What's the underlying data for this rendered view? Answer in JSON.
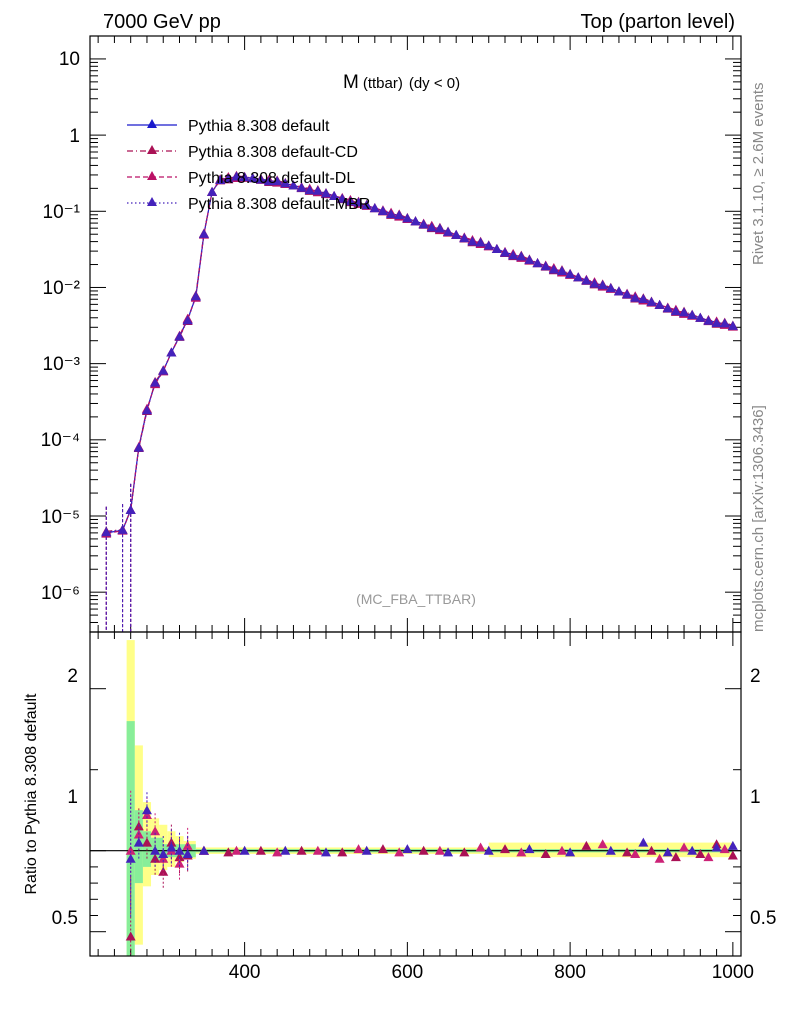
{
  "header": {
    "left": "7000 GeV pp",
    "right": "Top (parton level)"
  },
  "side": {
    "rivet": "Rivet 3.1.10, ≥ 2.6M events",
    "mcplots": "mcplots.cern.ch [arXiv:1306.3436]"
  },
  "chart_data": [
    {
      "type": "line",
      "title": "M",
      "title_sub": "(ttbar)",
      "title_tail": "(dy < 0)",
      "watermark": "(MC_FBA_TTBAR)",
      "yscale": "log",
      "xlim": [
        210,
        1010
      ],
      "ylim": [
        3e-07,
        20
      ],
      "y_tick_labels": [
        "10",
        "1",
        "10⁻¹",
        "10⁻²",
        "10⁻³",
        "10⁻⁴",
        "10⁻⁵",
        "10⁻⁶"
      ],
      "legend_position": "top-left",
      "series": [
        {
          "name": "Pythia 8.308 default",
          "color": "#1a1acc",
          "dash": "solid",
          "offset": 0.0
        },
        {
          "name": "Pythia 8.308 default-CD",
          "color": "#aa1155",
          "dash": "dashdot",
          "offset": -0.02
        },
        {
          "name": "Pythia 8.308 default-DL",
          "color": "#bb1166",
          "dash": "dashed",
          "offset": 0.01
        },
        {
          "name": "Pythia 8.308 default-MBR",
          "color": "#4422bb",
          "dash": "dotted",
          "offset": -0.01
        }
      ],
      "x": [
        230,
        250,
        260,
        270,
        280,
        290,
        300,
        310,
        320,
        330,
        340,
        350,
        360,
        370,
        380,
        390,
        400,
        410,
        420,
        430,
        440,
        450,
        460,
        470,
        480,
        490,
        500,
        510,
        520,
        530,
        540,
        550,
        560,
        570,
        580,
        590,
        600,
        610,
        620,
        630,
        640,
        650,
        660,
        670,
        680,
        690,
        700,
        710,
        720,
        730,
        740,
        750,
        760,
        770,
        780,
        790,
        800,
        810,
        820,
        830,
        840,
        850,
        860,
        870,
        880,
        890,
        900,
        910,
        920,
        930,
        940,
        950,
        960,
        970,
        980,
        990,
        1000
      ],
      "y": [
        6e-06,
        6.5e-06,
        1.2e-05,
        8e-05,
        0.00025,
        0.00055,
        0.0008,
        0.0014,
        0.0023,
        0.0038,
        0.0075,
        0.05,
        0.18,
        0.26,
        0.275,
        0.28,
        0.278,
        0.272,
        0.264,
        0.254,
        0.243,
        0.231,
        0.219,
        0.206,
        0.194,
        0.182,
        0.17,
        0.159,
        0.148,
        0.138,
        0.128,
        0.119,
        0.11,
        0.102,
        0.094,
        0.087,
        0.08,
        0.074,
        0.068,
        0.063,
        0.058,
        0.053,
        0.049,
        0.045,
        0.041,
        0.038,
        0.035,
        0.032,
        0.029,
        0.027,
        0.025,
        0.0228,
        0.0209,
        0.0192,
        0.0176,
        0.0161,
        0.0148,
        0.0136,
        0.0125,
        0.0115,
        0.0105,
        0.0097,
        0.0089,
        0.0082,
        0.0075,
        0.0069,
        0.0064,
        0.0059,
        0.0054,
        0.005,
        0.0046,
        0.0043,
        0.004,
        0.0037,
        0.0035,
        0.0033,
        0.0031
      ]
    },
    {
      "type": "scatter",
      "ylabel": "Ratio to Pythia 8.308 default",
      "xlim": [
        210,
        1010
      ],
      "ylim": [
        0.35,
        2.35
      ],
      "x_tick_labels": [
        "400",
        "600",
        "800",
        "1000"
      ],
      "y_tick_labels": [
        "0.5",
        "1",
        "2"
      ],
      "band_yellow": [
        {
          "x0": 255,
          "x1": 265,
          "lo": 0.35,
          "hi": 2.3
        },
        {
          "x0": 265,
          "x1": 275,
          "lo": 0.42,
          "hi": 1.65
        },
        {
          "x0": 275,
          "x1": 285,
          "lo": 0.78,
          "hi": 1.3
        },
        {
          "x0": 285,
          "x1": 295,
          "lo": 0.85,
          "hi": 1.2
        },
        {
          "x0": 295,
          "x1": 305,
          "lo": 0.88,
          "hi": 1.16
        },
        {
          "x0": 305,
          "x1": 315,
          "lo": 0.9,
          "hi": 1.12
        },
        {
          "x0": 315,
          "x1": 325,
          "lo": 0.93,
          "hi": 1.09
        },
        {
          "x0": 325,
          "x1": 340,
          "lo": 0.95,
          "hi": 1.06
        },
        {
          "x0": 340,
          "x1": 700,
          "lo": 0.98,
          "hi": 1.02
        },
        {
          "x0": 700,
          "x1": 1000,
          "lo": 0.96,
          "hi": 1.05
        }
      ],
      "band_green": [
        {
          "x0": 255,
          "x1": 265,
          "lo": 0.35,
          "hi": 1.8
        },
        {
          "x0": 265,
          "x1": 275,
          "lo": 0.8,
          "hi": 1.25
        },
        {
          "x0": 275,
          "x1": 285,
          "lo": 0.9,
          "hi": 1.12
        },
        {
          "x0": 285,
          "x1": 300,
          "lo": 0.93,
          "hi": 1.08
        },
        {
          "x0": 300,
          "x1": 340,
          "lo": 0.96,
          "hi": 1.04
        },
        {
          "x0": 340,
          "x1": 1000,
          "lo": 0.99,
          "hi": 1.01
        }
      ],
      "ratio_series": [
        {
          "name": "Pythia 8.308 default-CD",
          "color": "#aa1155",
          "x": [
            260,
            270,
            280,
            290,
            300,
            310,
            320,
            330,
            350,
            380,
            420,
            470,
            520,
            570,
            620,
            670,
            720,
            770,
            820,
            870,
            900,
            930,
            960,
            980,
            1000
          ],
          "y": [
            0.47,
            1.15,
            1.05,
            0.95,
            0.87,
            1.05,
            0.96,
            0.97,
            1.0,
            0.99,
            1.0,
            1.0,
            0.99,
            1.01,
            1.0,
            0.99,
            1.01,
            0.98,
            1.03,
            0.99,
            1.0,
            0.96,
            0.98,
            1.04,
            0.97
          ]
        },
        {
          "name": "Pythia 8.308 default-DL",
          "color": "#cc2277",
          "x": [
            260,
            270,
            280,
            290,
            300,
            310,
            320,
            330,
            350,
            390,
            440,
            490,
            540,
            590,
            640,
            690,
            740,
            790,
            840,
            880,
            910,
            940,
            970,
            990
          ],
          "y": [
            1.0,
            1.1,
            1.22,
            1.12,
            0.95,
            1.0,
            0.92,
            1.03,
            1.0,
            1.0,
            0.99,
            1.0,
            1.01,
            0.99,
            1.0,
            1.02,
            0.99,
            1.0,
            1.04,
            0.98,
            0.95,
            1.02,
            0.96,
            1.01
          ]
        },
        {
          "name": "Pythia 8.308 default-MBR",
          "color": "#4422bb",
          "x": [
            260,
            270,
            280,
            290,
            300,
            310,
            320,
            330,
            350,
            400,
            450,
            500,
            550,
            600,
            650,
            700,
            750,
            800,
            850,
            890,
            920,
            950,
            980,
            1000
          ],
          "y": [
            0.95,
            1.05,
            1.25,
            1.0,
            0.98,
            1.02,
            1.0,
            0.98,
            1.0,
            1.0,
            1.0,
            0.99,
            1.0,
            1.01,
            0.99,
            1.0,
            1.01,
            0.99,
            1.0,
            1.05,
            0.99,
            1.0,
            1.02,
            1.03
          ]
        }
      ]
    }
  ]
}
